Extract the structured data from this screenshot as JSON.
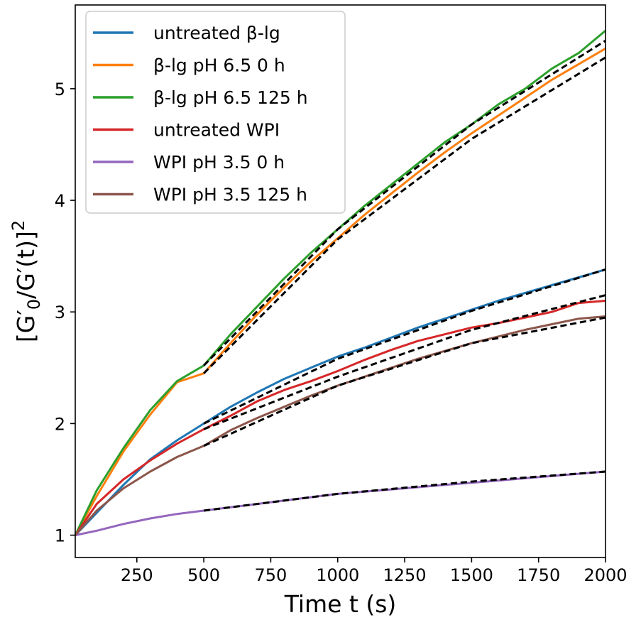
{
  "chart_data": {
    "type": "line",
    "xlabel": "Time t (s)",
    "ylabel": "[G′0/G′(t)]2",
    "xlim": [
      20,
      2000
    ],
    "ylim": [
      0.8,
      5.75
    ],
    "xticks": [
      250,
      500,
      750,
      1000,
      1250,
      1500,
      1750,
      2000
    ],
    "yticks": [
      1,
      2,
      3,
      4,
      5
    ],
    "grid": false,
    "legend": "top-left",
    "series": [
      {
        "name": "untreated β-lg",
        "color": "#1f77b4",
        "x": [
          20,
          100,
          200,
          300,
          400,
          500,
          600,
          700,
          800,
          900,
          1000,
          1100,
          1200,
          1300,
          1400,
          1500,
          1600,
          1700,
          1800,
          1900,
          2000
        ],
        "y": [
          1.0,
          1.2,
          1.45,
          1.68,
          1.85,
          2.0,
          2.15,
          2.28,
          2.4,
          2.5,
          2.6,
          2.68,
          2.77,
          2.86,
          2.94,
          3.02,
          3.1,
          3.17,
          3.24,
          3.31,
          3.38
        ]
      },
      {
        "name": "β-lg pH 6.5 0 h",
        "color": "#ff7f0e",
        "x": [
          20,
          100,
          200,
          300,
          400,
          500,
          600,
          700,
          800,
          900,
          1000,
          1100,
          1200,
          1300,
          1400,
          1500,
          1600,
          1700,
          1800,
          1900,
          2000
        ],
        "y": [
          1.0,
          1.35,
          1.75,
          2.08,
          2.37,
          2.45,
          2.72,
          2.98,
          3.22,
          3.45,
          3.66,
          3.87,
          4.06,
          4.25,
          4.43,
          4.6,
          4.76,
          4.92,
          5.08,
          5.22,
          5.36
        ]
      },
      {
        "name": "β-lg pH 6.5 125 h",
        "color": "#2ca02c",
        "x": [
          20,
          100,
          200,
          300,
          400,
          500,
          600,
          700,
          800,
          900,
          1000,
          1100,
          1200,
          1300,
          1400,
          1500,
          1600,
          1700,
          1800,
          1900,
          2000
        ],
        "y": [
          1.0,
          1.4,
          1.78,
          2.12,
          2.38,
          2.52,
          2.8,
          3.05,
          3.3,
          3.53,
          3.74,
          3.95,
          4.14,
          4.33,
          4.52,
          4.68,
          4.86,
          5.0,
          5.18,
          5.32,
          5.52
        ]
      },
      {
        "name": "untreated WPI",
        "color": "#d62728",
        "x": [
          20,
          100,
          200,
          300,
          400,
          500,
          600,
          700,
          800,
          900,
          1000,
          1100,
          1200,
          1300,
          1400,
          1500,
          1600,
          1700,
          1800,
          1900,
          2000
        ],
        "y": [
          1.0,
          1.28,
          1.5,
          1.67,
          1.82,
          1.95,
          2.07,
          2.2,
          2.3,
          2.38,
          2.47,
          2.57,
          2.66,
          2.74,
          2.8,
          2.86,
          2.9,
          2.95,
          3.0,
          3.08,
          3.1
        ]
      },
      {
        "name": "WPI pH 3.5 0 h",
        "color": "#9467bd",
        "x": [
          20,
          100,
          200,
          300,
          400,
          500,
          600,
          700,
          800,
          900,
          1000,
          1100,
          1200,
          1300,
          1400,
          1500,
          1600,
          1700,
          1800,
          1900,
          2000
        ],
        "y": [
          1.0,
          1.04,
          1.1,
          1.15,
          1.19,
          1.22,
          1.25,
          1.28,
          1.31,
          1.34,
          1.37,
          1.39,
          1.41,
          1.43,
          1.45,
          1.47,
          1.49,
          1.51,
          1.53,
          1.55,
          1.57
        ]
      },
      {
        "name": "WPI pH 3.5 125 h",
        "color": "#8c564b",
        "x": [
          20,
          100,
          200,
          300,
          400,
          500,
          600,
          700,
          800,
          900,
          1000,
          1100,
          1200,
          1300,
          1400,
          1500,
          1600,
          1700,
          1800,
          1900,
          2000
        ],
        "y": [
          1.0,
          1.22,
          1.42,
          1.57,
          1.7,
          1.8,
          1.94,
          2.05,
          2.15,
          2.25,
          2.34,
          2.42,
          2.5,
          2.58,
          2.65,
          2.72,
          2.78,
          2.84,
          2.89,
          2.94,
          2.96
        ]
      }
    ],
    "fits": [
      {
        "color": "#000000",
        "dash": "dashed",
        "x": [
          500,
          1000,
          1500,
          2000
        ],
        "y": [
          2.0,
          2.58,
          3.01,
          3.38
        ]
      },
      {
        "color": "#000000",
        "dash": "dashed",
        "x": [
          500,
          1000,
          1500,
          2000
        ],
        "y": [
          2.45,
          3.65,
          4.55,
          5.28
        ]
      },
      {
        "color": "#000000",
        "dash": "dashed",
        "x": [
          500,
          1000,
          1500,
          2000
        ],
        "y": [
          2.52,
          3.74,
          4.68,
          5.43
        ]
      },
      {
        "color": "#000000",
        "dash": "dashed",
        "x": [
          500,
          1000,
          1500,
          2000
        ],
        "y": [
          1.95,
          2.42,
          2.84,
          3.15
        ]
      },
      {
        "color": "#000000",
        "dash": "dashed",
        "x": [
          500,
          1000,
          1500,
          2000
        ],
        "y": [
          1.22,
          1.37,
          1.48,
          1.57
        ]
      },
      {
        "color": "#000000",
        "dash": "dashed",
        "x": [
          500,
          1000,
          1500,
          2000
        ],
        "y": [
          1.8,
          2.34,
          2.72,
          2.95
        ]
      }
    ]
  }
}
